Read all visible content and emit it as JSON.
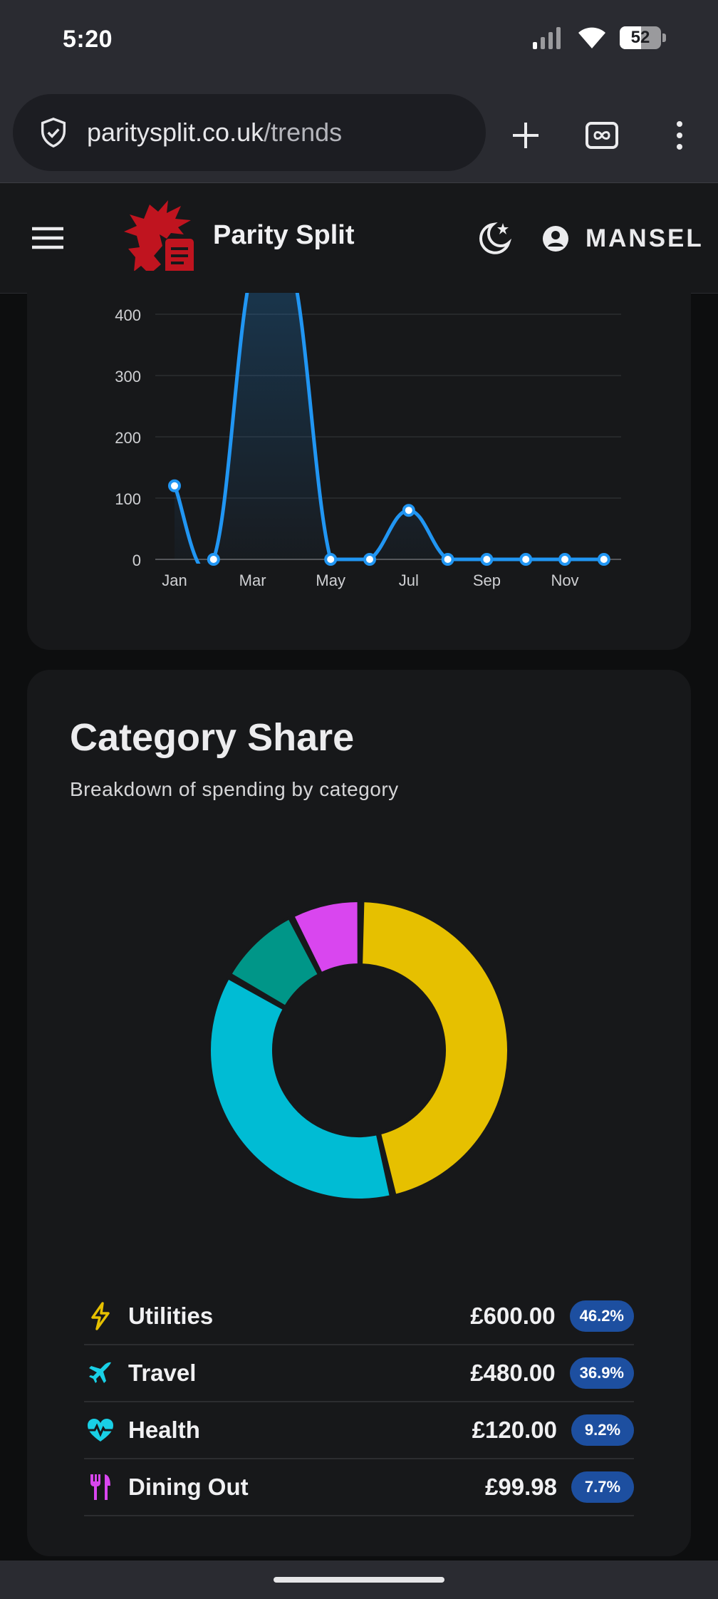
{
  "status_bar": {
    "time": "5:20",
    "battery": "52",
    "battery_level": 0.52
  },
  "browser": {
    "url_domain": "paritysplit.co.uk",
    "url_path": "/trends",
    "icons": [
      "shield-check-icon",
      "plus-icon",
      "tab-switcher-icon",
      "more-vert-icon"
    ]
  },
  "header": {
    "brand": "Parity Split",
    "user_name": "MANSEL",
    "icons": [
      "hamburger-menu-icon",
      "dragon-logo",
      "theme-toggle-icon",
      "account-circle-icon"
    ]
  },
  "trend_chart": {
    "chart_data": {
      "type": "line",
      "categories": [
        "Jan",
        "Feb",
        "Mar",
        "Apr",
        "May",
        "Jun",
        "Jul",
        "Aug",
        "Sep",
        "Oct",
        "Nov",
        "Dec"
      ],
      "tick_labels": [
        "Jan",
        "Mar",
        "May",
        "Jul",
        "Sep",
        "Nov"
      ],
      "series": [
        {
          "values": [
            120,
            0,
            480,
            480,
            0,
            0,
            80,
            0,
            0,
            0,
            0,
            0
          ]
        }
      ],
      "y_ticks": [
        0,
        100,
        200,
        300,
        400
      ],
      "ylim": [
        0,
        400
      ],
      "grid": true,
      "color": "#2196f3"
    }
  },
  "category_share": {
    "title": "Category Share",
    "subtitle": "Breakdown of spending by category",
    "chart_data": {
      "type": "pie",
      "labels": [
        "Utilities",
        "Travel",
        "Health",
        "Dining Out"
      ],
      "values": [
        600.0,
        480.0,
        120.0,
        99.98
      ],
      "colors": [
        "#e6c000",
        "#00bcd4",
        "#009688",
        "#d946ef"
      ]
    },
    "items": [
      {
        "name": "Utilities",
        "amount": "£600.00",
        "pct": "46.2%",
        "icon": "lightning-bolt-icon",
        "color": "#e6c000"
      },
      {
        "name": "Travel",
        "amount": "£480.00",
        "pct": "36.9%",
        "icon": "airplane-icon",
        "color": "#19d0e6"
      },
      {
        "name": "Health",
        "amount": "£120.00",
        "pct": "9.2%",
        "icon": "heart-pulse-icon",
        "color": "#19d0e6"
      },
      {
        "name": "Dining Out",
        "amount": "£99.98",
        "pct": "7.7%",
        "icon": "cutlery-icon",
        "color": "#d946ef"
      }
    ]
  }
}
